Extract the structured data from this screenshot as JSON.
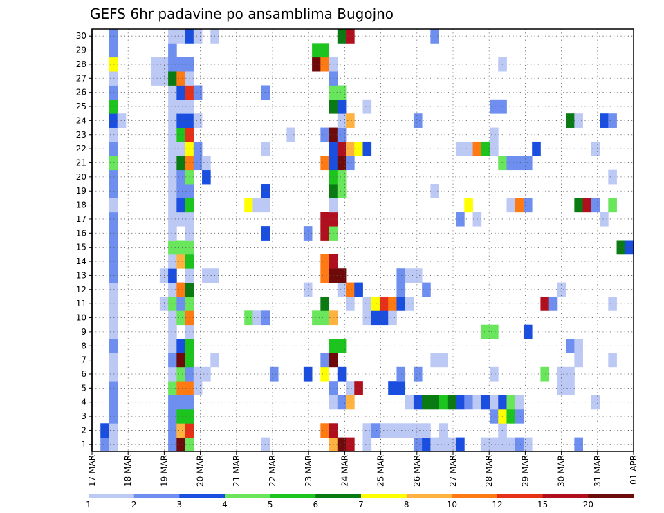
{
  "chart_data": {
    "type": "heatmap",
    "title": "GEFS 6hr padavine po ansamblima Bugojno",
    "xlabel": "",
    "ylabel": "",
    "x_tick_labels": [
      "17 MAR",
      "18 MAR",
      "19 MAR",
      "20 MAR",
      "21 MAR",
      "22 MAR",
      "23 MAR",
      "24 MAR",
      "25 MAR",
      "26 MAR",
      "27 MAR",
      "28 MAR",
      "29 MAR",
      "30 MAR",
      "31 MAR",
      "01 APR"
    ],
    "y_tick_labels": [
      "1",
      "2",
      "3",
      "4",
      "5",
      "6",
      "7",
      "8",
      "9",
      "10",
      "11",
      "12",
      "13",
      "14",
      "15",
      "16",
      "17",
      "18",
      "19",
      "20",
      "21",
      "22",
      "23",
      "24",
      "25",
      "26",
      "27",
      "28",
      "29",
      "30"
    ],
    "grid": true,
    "colorbar": {
      "colors": [
        "#bdc9f5",
        "#6f8ff0",
        "#1a4ee0",
        "#6ae65c",
        "#1ec41e",
        "#0a7a12",
        "#ffff00",
        "#ffb240",
        "#ff7a12",
        "#e63018",
        "#b0101e",
        "#6e0a0a"
      ],
      "labels": [
        "1",
        "2",
        "3",
        "4",
        "5",
        "6",
        "7",
        "8",
        "10",
        "12",
        "15",
        "20"
      ]
    },
    "cells": [
      [
        2,
        1,
        2
      ],
      [
        2,
        2,
        3
      ],
      [
        3,
        1,
        1
      ],
      [
        3,
        2,
        1
      ],
      [
        3,
        3,
        2
      ],
      [
        3,
        4,
        2
      ],
      [
        3,
        5,
        2
      ],
      [
        3,
        6,
        1
      ],
      [
        3,
        7,
        1
      ],
      [
        3,
        8,
        2
      ],
      [
        3,
        9,
        1
      ],
      [
        3,
        10,
        1
      ],
      [
        3,
        11,
        1
      ],
      [
        3,
        12,
        1
      ],
      [
        3,
        13,
        2
      ],
      [
        3,
        14,
        2
      ],
      [
        3,
        15,
        2
      ],
      [
        3,
        16,
        2
      ],
      [
        3,
        17,
        2
      ],
      [
        3,
        18,
        1
      ],
      [
        3,
        19,
        2
      ],
      [
        3,
        20,
        2
      ],
      [
        3,
        21,
        4
      ],
      [
        3,
        22,
        2
      ],
      [
        3,
        23,
        1
      ],
      [
        3,
        24,
        3
      ],
      [
        3,
        25,
        5
      ],
      [
        3,
        26,
        2
      ],
      [
        3,
        27,
        1
      ],
      [
        3,
        28,
        7
      ],
      [
        3,
        29,
        2
      ],
      [
        3,
        30,
        2
      ],
      [
        4,
        24,
        1
      ],
      [
        8,
        28,
        1
      ],
      [
        8,
        27,
        1
      ],
      [
        9,
        28,
        1
      ],
      [
        9,
        27,
        1
      ],
      [
        9,
        11,
        1
      ],
      [
        9,
        13,
        1
      ],
      [
        10,
        1,
        2
      ],
      [
        10,
        2,
        2
      ],
      [
        10,
        3,
        2
      ],
      [
        10,
        4,
        2
      ],
      [
        10,
        5,
        4
      ],
      [
        10,
        6,
        1
      ],
      [
        10,
        7,
        2
      ],
      [
        10,
        8,
        1
      ],
      [
        10,
        9,
        1
      ],
      [
        10,
        10,
        1
      ],
      [
        10,
        11,
        4
      ],
      [
        10,
        12,
        1
      ],
      [
        10,
        13,
        3
      ],
      [
        10,
        14,
        1
      ],
      [
        10,
        15,
        4
      ],
      [
        10,
        16,
        1
      ],
      [
        10,
        17,
        1
      ],
      [
        10,
        18,
        1
      ],
      [
        10,
        19,
        1
      ],
      [
        10,
        20,
        1
      ],
      [
        10,
        21,
        1
      ],
      [
        10,
        22,
        1
      ],
      [
        10,
        23,
        1
      ],
      [
        10,
        24,
        1
      ],
      [
        10,
        25,
        1
      ],
      [
        10,
        26,
        1
      ],
      [
        10,
        27,
        6
      ],
      [
        10,
        28,
        2
      ],
      [
        10,
        29,
        2
      ],
      [
        10,
        30,
        1
      ],
      [
        11,
        1,
        12
      ],
      [
        11,
        2,
        8
      ],
      [
        11,
        3,
        5
      ],
      [
        11,
        4,
        2
      ],
      [
        11,
        5,
        9
      ],
      [
        11,
        6,
        4
      ],
      [
        11,
        7,
        12
      ],
      [
        11,
        8,
        3
      ],
      [
        11,
        10,
        4
      ],
      [
        11,
        11,
        2
      ],
      [
        11,
        12,
        9
      ],
      [
        11,
        14,
        8
      ],
      [
        11,
        15,
        4
      ],
      [
        11,
        17,
        1
      ],
      [
        11,
        18,
        3
      ],
      [
        11,
        19,
        2
      ],
      [
        11,
        20,
        2
      ],
      [
        11,
        21,
        6
      ],
      [
        11,
        22,
        1
      ],
      [
        11,
        23,
        5
      ],
      [
        11,
        24,
        3
      ],
      [
        11,
        25,
        1
      ],
      [
        11,
        26,
        3
      ],
      [
        11,
        27,
        9
      ],
      [
        11,
        28,
        2
      ],
      [
        11,
        30,
        1
      ],
      [
        12,
        1,
        4
      ],
      [
        12,
        2,
        10
      ],
      [
        12,
        3,
        5
      ],
      [
        12,
        4,
        2
      ],
      [
        12,
        5,
        9
      ],
      [
        12,
        6,
        2
      ],
      [
        12,
        7,
        5
      ],
      [
        12,
        8,
        5
      ],
      [
        12,
        9,
        1
      ],
      [
        12,
        10,
        9
      ],
      [
        12,
        11,
        4
      ],
      [
        12,
        12,
        6
      ],
      [
        12,
        13,
        1
      ],
      [
        12,
        14,
        5
      ],
      [
        12,
        15,
        4
      ],
      [
        12,
        16,
        1
      ],
      [
        12,
        17,
        1
      ],
      [
        12,
        18,
        5
      ],
      [
        12,
        19,
        2
      ],
      [
        12,
        20,
        4
      ],
      [
        12,
        21,
        9
      ],
      [
        12,
        22,
        7
      ],
      [
        12,
        23,
        10
      ],
      [
        12,
        24,
        3
      ],
      [
        12,
        25,
        1
      ],
      [
        12,
        26,
        10
      ],
      [
        12,
        27,
        1
      ],
      [
        12,
        28,
        2
      ],
      [
        12,
        30,
        3
      ],
      [
        13,
        5,
        1
      ],
      [
        13,
        6,
        1
      ],
      [
        13,
        21,
        2
      ],
      [
        13,
        22,
        2
      ],
      [
        13,
        24,
        1
      ],
      [
        13,
        26,
        2
      ],
      [
        13,
        30,
        1
      ],
      [
        14,
        6,
        1
      ],
      [
        14,
        13,
        1
      ],
      [
        14,
        20,
        3
      ],
      [
        14,
        21,
        1
      ],
      [
        15,
        7,
        1
      ],
      [
        15,
        13,
        1
      ],
      [
        15,
        30,
        1
      ],
      [
        19,
        10,
        4
      ],
      [
        19,
        18,
        7
      ],
      [
        20,
        10,
        1
      ],
      [
        20,
        18,
        1
      ],
      [
        21,
        1,
        1
      ],
      [
        21,
        10,
        2
      ],
      [
        21,
        16,
        3
      ],
      [
        21,
        18,
        1
      ],
      [
        21,
        19,
        3
      ],
      [
        21,
        22,
        1
      ],
      [
        21,
        26,
        2
      ],
      [
        22,
        6,
        2
      ],
      [
        24,
        23,
        1
      ],
      [
        26,
        6,
        3
      ],
      [
        26,
        12,
        1
      ],
      [
        26,
        16,
        2
      ],
      [
        27,
        10,
        4
      ],
      [
        27,
        28,
        12
      ],
      [
        27,
        29,
        5
      ],
      [
        28,
        2,
        9
      ],
      [
        28,
        6,
        7
      ],
      [
        28,
        7,
        2
      ],
      [
        28,
        10,
        4
      ],
      [
        28,
        11,
        6
      ],
      [
        28,
        13,
        9
      ],
      [
        28,
        14,
        9
      ],
      [
        28,
        16,
        11
      ],
      [
        28,
        17,
        11
      ],
      [
        28,
        21,
        9
      ],
      [
        28,
        23,
        2
      ],
      [
        28,
        28,
        9
      ],
      [
        28,
        29,
        5
      ],
      [
        29,
        1,
        8
      ],
      [
        29,
        2,
        11
      ],
      [
        29,
        4,
        1
      ],
      [
        29,
        5,
        2
      ],
      [
        29,
        7,
        12
      ],
      [
        29,
        8,
        5
      ],
      [
        29,
        10,
        8
      ],
      [
        29,
        13,
        12
      ],
      [
        29,
        14,
        11
      ],
      [
        29,
        16,
        4
      ],
      [
        29,
        17,
        11
      ],
      [
        29,
        18,
        1
      ],
      [
        29,
        19,
        6
      ],
      [
        29,
        20,
        5
      ],
      [
        29,
        21,
        3
      ],
      [
        29,
        22,
        3
      ],
      [
        29,
        23,
        12
      ],
      [
        29,
        25,
        6
      ],
      [
        29,
        26,
        4
      ],
      [
        29,
        27,
        2
      ],
      [
        29,
        28,
        1
      ],
      [
        30,
        1,
        12
      ],
      [
        30,
        4,
        2
      ],
      [
        30,
        6,
        3
      ],
      [
        30,
        8,
        5
      ],
      [
        30,
        12,
        1
      ],
      [
        30,
        13,
        12
      ],
      [
        30,
        19,
        4
      ],
      [
        30,
        20,
        4
      ],
      [
        30,
        21,
        12
      ],
      [
        30,
        22,
        11
      ],
      [
        30,
        23,
        2
      ],
      [
        30,
        24,
        1
      ],
      [
        30,
        25,
        3
      ],
      [
        30,
        26,
        4
      ],
      [
        30,
        30,
        6
      ],
      [
        31,
        1,
        11
      ],
      [
        31,
        4,
        8
      ],
      [
        31,
        5,
        1
      ],
      [
        31,
        11,
        1
      ],
      [
        31,
        12,
        9
      ],
      [
        31,
        21,
        2
      ],
      [
        31,
        22,
        8
      ],
      [
        31,
        24,
        8
      ],
      [
        31,
        30,
        11
      ],
      [
        32,
        5,
        11
      ],
      [
        32,
        12,
        3
      ],
      [
        32,
        22,
        7
      ],
      [
        33,
        1,
        1
      ],
      [
        33,
        2,
        1
      ],
      [
        33,
        10,
        1
      ],
      [
        33,
        11,
        1
      ],
      [
        33,
        22,
        3
      ],
      [
        33,
        25,
        1
      ],
      [
        34,
        2,
        2
      ],
      [
        34,
        10,
        3
      ],
      [
        34,
        11,
        7
      ],
      [
        35,
        2,
        1
      ],
      [
        35,
        10,
        3
      ],
      [
        35,
        11,
        10
      ],
      [
        36,
        2,
        1
      ],
      [
        36,
        5,
        3
      ],
      [
        36,
        10,
        1
      ],
      [
        36,
        11,
        9
      ],
      [
        37,
        2,
        1
      ],
      [
        37,
        5,
        3
      ],
      [
        37,
        6,
        2
      ],
      [
        37,
        11,
        3
      ],
      [
        37,
        12,
        2
      ],
      [
        37,
        13,
        2
      ],
      [
        38,
        2,
        1
      ],
      [
        38,
        4,
        1
      ],
      [
        38,
        11,
        1
      ],
      [
        38,
        13,
        1
      ],
      [
        39,
        1,
        2
      ],
      [
        39,
        2,
        1
      ],
      [
        39,
        4,
        3
      ],
      [
        39,
        6,
        2
      ],
      [
        39,
        13,
        1
      ],
      [
        39,
        24,
        2
      ],
      [
        40,
        1,
        3
      ],
      [
        40,
        2,
        1
      ],
      [
        40,
        4,
        6
      ],
      [
        40,
        12,
        2
      ],
      [
        41,
        1,
        1
      ],
      [
        41,
        4,
        6
      ],
      [
        41,
        7,
        1
      ],
      [
        41,
        19,
        1
      ],
      [
        41,
        30,
        2
      ],
      [
        42,
        1,
        1
      ],
      [
        42,
        2,
        1
      ],
      [
        42,
        4,
        5
      ],
      [
        42,
        7,
        1
      ],
      [
        43,
        1,
        1
      ],
      [
        43,
        4,
        6
      ],
      [
        44,
        1,
        3
      ],
      [
        44,
        4,
        3
      ],
      [
        44,
        17,
        2
      ],
      [
        44,
        22,
        1
      ],
      [
        45,
        4,
        2
      ],
      [
        45,
        18,
        7
      ],
      [
        45,
        22,
        1
      ],
      [
        46,
        4,
        1
      ],
      [
        46,
        17,
        1
      ],
      [
        46,
        22,
        9
      ],
      [
        47,
        1,
        1
      ],
      [
        47,
        4,
        3
      ],
      [
        47,
        9,
        4
      ],
      [
        47,
        22,
        5
      ],
      [
        48,
        1,
        1
      ],
      [
        48,
        3,
        2
      ],
      [
        48,
        4,
        1
      ],
      [
        48,
        6,
        1
      ],
      [
        48,
        9,
        4
      ],
      [
        48,
        22,
        1
      ],
      [
        48,
        23,
        1
      ],
      [
        48,
        25,
        2
      ],
      [
        49,
        1,
        1
      ],
      [
        49,
        2,
        1
      ],
      [
        49,
        3,
        7
      ],
      [
        49,
        4,
        3
      ],
      [
        49,
        21,
        4
      ],
      [
        49,
        25,
        2
      ],
      [
        49,
        28,
        1
      ],
      [
        50,
        1,
        1
      ],
      [
        50,
        3,
        5
      ],
      [
        50,
        4,
        4
      ],
      [
        50,
        18,
        1
      ],
      [
        50,
        21,
        2
      ],
      [
        51,
        1,
        2
      ],
      [
        51,
        3,
        2
      ],
      [
        51,
        4,
        1
      ],
      [
        51,
        18,
        9
      ],
      [
        51,
        21,
        2
      ],
      [
        52,
        1,
        1
      ],
      [
        52,
        9,
        3
      ],
      [
        52,
        18,
        2
      ],
      [
        52,
        21,
        2
      ],
      [
        53,
        22,
        3
      ],
      [
        54,
        6,
        4
      ],
      [
        54,
        11,
        11
      ],
      [
        55,
        11,
        2
      ],
      [
        56,
        5,
        1
      ],
      [
        56,
        6,
        1
      ],
      [
        56,
        12,
        1
      ],
      [
        57,
        5,
        1
      ],
      [
        57,
        6,
        1
      ],
      [
        57,
        8,
        2
      ],
      [
        57,
        24,
        6
      ],
      [
        58,
        1,
        2
      ],
      [
        58,
        7,
        1
      ],
      [
        58,
        8,
        1
      ],
      [
        58,
        18,
        6
      ],
      [
        58,
        24,
        1
      ],
      [
        59,
        18,
        11
      ],
      [
        60,
        4,
        1
      ],
      [
        60,
        18,
        2
      ],
      [
        60,
        22,
        1
      ],
      [
        61,
        17,
        1
      ],
      [
        61,
        24,
        3
      ],
      [
        62,
        7,
        1
      ],
      [
        62,
        11,
        1
      ],
      [
        62,
        18,
        4
      ],
      [
        62,
        20,
        1
      ],
      [
        62,
        24,
        2
      ],
      [
        63,
        15,
        6
      ],
      [
        64,
        15,
        3
      ]
    ]
  }
}
